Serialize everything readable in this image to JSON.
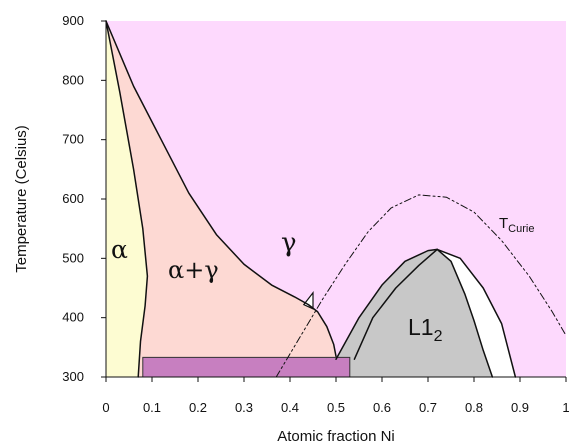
{
  "chart_data": {
    "type": "diagram",
    "xlabel": "Atomic fraction Ni",
    "ylabel": "Temperature (Celsius)",
    "xlim": [
      0,
      1
    ],
    "ylim": [
      300,
      900
    ],
    "x_ticks": [
      "0",
      "0.1",
      "0.2",
      "0.3",
      "0.4",
      "0.5",
      "0.6",
      "0.7",
      "0.8",
      "0.9",
      "1"
    ],
    "y_ticks": [
      "300",
      "400",
      "500",
      "600",
      "700",
      "800",
      "900"
    ],
    "grid": false,
    "regions": [
      {
        "label": "α",
        "color": "#fdfcd2"
      },
      {
        "label": "α+γ",
        "color": "#fdd9d3"
      },
      {
        "label": "γ",
        "color": "#fdd9fd"
      },
      {
        "label": "L1",
        "subscript": "2",
        "color": "#c8c8c8"
      },
      {
        "label": "",
        "color": "#c77fc0"
      }
    ],
    "curie": {
      "label": "T",
      "subscript": "Curie"
    },
    "curves": {
      "alpha_solvus": [
        [
          0.0,
          900
        ],
        [
          0.03,
          780
        ],
        [
          0.06,
          650
        ],
        [
          0.08,
          550
        ],
        [
          0.09,
          470
        ],
        [
          0.085,
          420
        ],
        [
          0.075,
          360
        ],
        [
          0.07,
          300
        ]
      ],
      "alpha_gamma_boundary": [
        [
          0.0,
          900
        ],
        [
          0.06,
          790
        ],
        [
          0.12,
          700
        ],
        [
          0.18,
          610
        ],
        [
          0.24,
          540
        ],
        [
          0.3,
          490
        ],
        [
          0.36,
          455
        ],
        [
          0.41,
          435
        ],
        [
          0.44,
          422
        ],
        [
          0.46,
          410
        ],
        [
          0.48,
          385
        ],
        [
          0.495,
          355
        ],
        [
          0.5,
          335
        ]
      ],
      "l12_left_gray": [
        [
          0.5,
          330
        ],
        [
          0.55,
          400
        ],
        [
          0.6,
          455
        ],
        [
          0.65,
          495
        ],
        [
          0.7,
          513
        ],
        [
          0.72,
          515
        ]
      ],
      "l12_right_gray": [
        [
          0.72,
          515
        ],
        [
          0.75,
          495
        ],
        [
          0.78,
          440
        ],
        [
          0.8,
          395
        ],
        [
          0.82,
          345
        ],
        [
          0.84,
          300
        ]
      ],
      "l12_left_outer": [
        [
          0.54,
          330
        ],
        [
          0.58,
          400
        ],
        [
          0.63,
          450
        ],
        [
          0.68,
          488
        ],
        [
          0.72,
          515
        ]
      ],
      "l12_right_outer": [
        [
          0.72,
          515
        ],
        [
          0.77,
          500
        ],
        [
          0.82,
          450
        ],
        [
          0.86,
          390
        ],
        [
          0.89,
          300
        ]
      ],
      "curie_line": [
        [
          0.37,
          300
        ],
        [
          0.42,
          365
        ],
        [
          0.47,
          430
        ],
        [
          0.52,
          490
        ],
        [
          0.57,
          545
        ],
        [
          0.62,
          585
        ],
        [
          0.68,
          607
        ],
        [
          0.74,
          603
        ],
        [
          0.8,
          578
        ],
        [
          0.86,
          530
        ],
        [
          0.92,
          470
        ],
        [
          0.97,
          410
        ],
        [
          1.0,
          370
        ]
      ],
      "eutectoid_band": [
        [
          0.08,
          300
        ],
        [
          0.53,
          300
        ],
        [
          0.53,
          333
        ],
        [
          0.08,
          333
        ]
      ],
      "small_wedge": [
        [
          0.43,
          422
        ],
        [
          0.45,
          442
        ],
        [
          0.45,
          415
        ]
      ]
    }
  }
}
